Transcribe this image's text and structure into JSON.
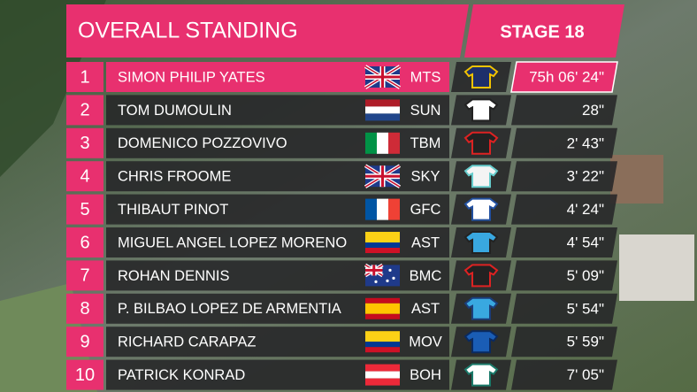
{
  "header": {
    "title": "OVERALL STANDING",
    "stage": "STAGE 18"
  },
  "table": {
    "rows": [
      [
        "1",
        "SIMON PHILIP YATES",
        "MTS",
        "75h 06' 24\""
      ],
      [
        "2",
        "TOM DUMOULIN",
        "SUN",
        "28\""
      ],
      [
        "3",
        "DOMENICO POZZOVIVO",
        "TBM",
        "2' 43\""
      ],
      [
        "4",
        "CHRIS FROOME",
        "SKY",
        "3' 22\""
      ],
      [
        "5",
        "THIBAUT PINOT",
        "GFC",
        "4' 24\""
      ],
      [
        "6",
        "MIGUEL ANGEL LOPEZ MORENO",
        "AST",
        "4' 54\""
      ],
      [
        "7",
        "ROHAN DENNIS",
        "BMC",
        "5' 09\""
      ],
      [
        "8",
        "P. BILBAO LOPEZ DE ARMENTIA",
        "AST",
        "5' 54\""
      ],
      [
        "9",
        "RICHARD CARAPAZ",
        "MOV",
        "5' 59\""
      ],
      [
        "10",
        "PATRICK KONRAD",
        "BOH",
        "7' 05\""
      ]
    ]
  }
}
